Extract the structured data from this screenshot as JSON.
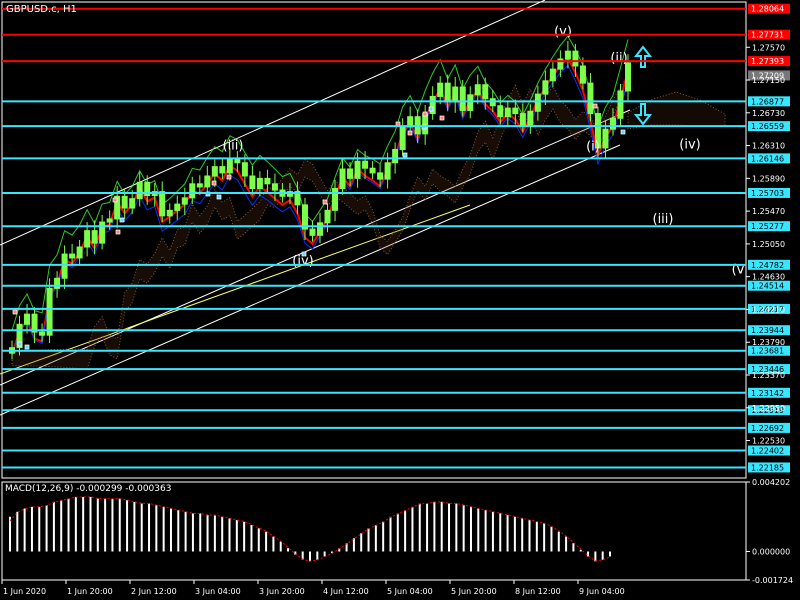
{
  "chart_data": {
    "type": "candlestick",
    "symbol_title": "GBPUSD.c, H1",
    "main_ylim": [
      1.2205,
      1.2815
    ],
    "price_axis_ticks": [
      "1.27570",
      "1.27150",
      "1.26730",
      "1.26310",
      "1.25890",
      "1.25470",
      "1.25050",
      "1.24630",
      "1.24210",
      "1.23790",
      "1.23370",
      "1.22950",
      "1.22530"
    ],
    "time_axis_ticks": [
      "1 Jun 2020",
      "1 Jun 20:00",
      "2 Jun 12:00",
      "3 Jun 04:00",
      "3 Jun 20:00",
      "4 Jun 12:00",
      "5 Jun 04:00",
      "5 Jun 20:00",
      "8 Jun 12:00",
      "9 Jun 04:00"
    ],
    "red_levels": [
      "1.28064",
      "1.27731",
      "1.27393"
    ],
    "gray_level": "1.27209",
    "cyan_levels": [
      "1.26877",
      "1.26559",
      "1.26146",
      "1.25703",
      "1.25277",
      "1.24782",
      "1.24514",
      "1.24217",
      "1.23944",
      "1.23681",
      "1.23446",
      "1.23142",
      "1.22919",
      "1.22692",
      "1.22402",
      "1.22185"
    ],
    "wave_labels": [
      {
        "text": "(iii)",
        "price": 1.2626
      },
      {
        "text": "(iv)",
        "price": 1.2478
      },
      {
        "text": "(v)",
        "price": 1.2772
      },
      {
        "text": "(i)",
        "price": 1.2625
      },
      {
        "text": "(ii)",
        "price": 1.2738
      },
      {
        "text": "(iv)",
        "price": 1.2627
      },
      {
        "text": "(iii)",
        "price": 1.2532
      },
      {
        "text": "(v",
        "price": 1.2467
      }
    ],
    "candles_close": [
      1.2372,
      1.2402,
      1.2415,
      1.2392,
      1.2388,
      1.2448,
      1.2461,
      1.2492,
      1.2487,
      1.2501,
      1.2522,
      1.2506,
      1.2533,
      1.2537,
      1.2566,
      1.2551,
      1.2563,
      1.2584,
      1.2567,
      1.2572,
      1.2541,
      1.2548,
      1.2556,
      1.2564,
      1.2582,
      1.2578,
      1.2592,
      1.2604,
      1.2596,
      1.2615,
      1.2609,
      1.2592,
      1.2576,
      1.2589,
      1.2582,
      1.2574,
      1.2566,
      1.2572,
      1.2555,
      1.2524,
      1.2516,
      1.2532,
      1.2548,
      1.2576,
      1.2601,
      1.2589,
      1.2611,
      1.2602,
      1.2596,
      1.2588,
      1.2609,
      1.2626,
      1.2655,
      1.2668,
      1.2646,
      1.2672,
      1.2694,
      1.2711,
      1.2687,
      1.2706,
      1.2676,
      1.2696,
      1.2709,
      1.2691,
      1.2682,
      1.2668,
      1.2679,
      1.2672,
      1.2656,
      1.2675,
      1.2697,
      1.2714,
      1.2729,
      1.2742,
      1.2752,
      1.2733,
      1.2711,
      1.2672,
      1.2628,
      1.2652,
      1.2666,
      1.2701,
      1.2737
    ],
    "macd": {
      "label": "MACD(12,26,9) -0.000299 -0.000363",
      "ylim": [
        -0.001724,
        0.004202
      ],
      "ticks": [
        "0.004202",
        "0.000000",
        "-0.001724"
      ],
      "histogram": [
        0.0021,
        0.0024,
        0.0026,
        0.0027,
        0.0027,
        0.0028,
        0.003,
        0.0031,
        0.0032,
        0.0033,
        0.0033,
        0.0033,
        0.0032,
        0.0032,
        0.0032,
        0.0032,
        0.0031,
        0.003,
        0.0029,
        0.0029,
        0.0028,
        0.0027,
        0.0026,
        0.0025,
        0.0024,
        0.0023,
        0.0023,
        0.0022,
        0.0022,
        0.0021,
        0.002,
        0.0019,
        0.0018,
        0.0016,
        0.0014,
        0.0012,
        0.0009,
        0.0006,
        0.0002,
        -0.0002,
        -0.0005,
        -0.0006,
        -0.0005,
        -0.0003,
        -0.0001,
        0.0002,
        0.0005,
        0.0008,
        0.0011,
        0.0014,
        0.0016,
        0.0018,
        0.0021,
        0.0023,
        0.0025,
        0.0027,
        0.0029,
        0.0029,
        0.003,
        0.003,
        0.0029,
        0.0029,
        0.0028,
        0.0027,
        0.0026,
        0.0025,
        0.0024,
        0.0023,
        0.0022,
        0.0021,
        0.002,
        0.0019,
        0.0018,
        0.0017,
        0.0015,
        0.0012,
        0.0009,
        0.0005,
        0.0001,
        -0.0003,
        -0.0006,
        -0.0005,
        -0.0003
      ]
    }
  },
  "colors": {
    "bg": "#000000",
    "grid": "#ffffff",
    "candle": "#7cff4a",
    "red": "#ff0000",
    "cyan": "#39e6ff",
    "blue": "#0033ff",
    "yellow": "#ffff66",
    "axis_bg_cyan": "#39e6ff",
    "axis_bg_red": "#ff0000",
    "axis_bg_gray": "#777777",
    "macd": "#ffffff"
  }
}
